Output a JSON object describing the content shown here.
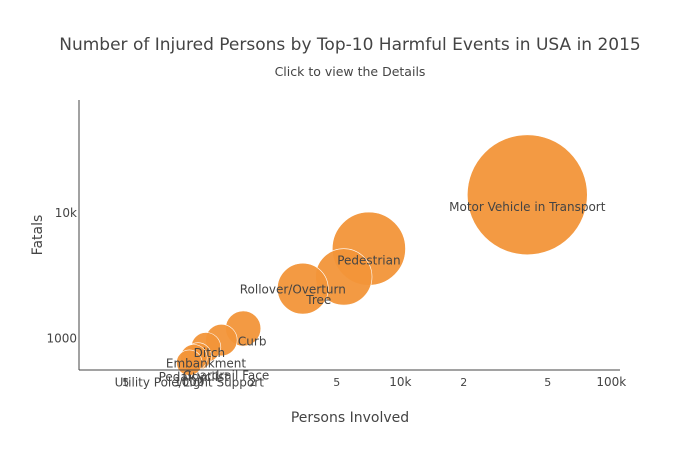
{
  "chart_data": {
    "type": "scatter",
    "title": "Number of Injured Persons by Top-10 Harmful Events in USA in 2015",
    "subtitle": "Click to view the Details",
    "xlabel": "Persons Involved",
    "ylabel": "Fatals",
    "x_scale": "log",
    "y_scale": "log",
    "xlim": [
      300,
      110000
    ],
    "ylim": [
      560,
      80000
    ],
    "grid": false,
    "legend": "none",
    "color": "#f29539",
    "x_ticks": [
      {
        "value": 500,
        "label": "5",
        "minor": true
      },
      {
        "value": 1000,
        "label": "1000",
        "minor": false
      },
      {
        "value": 2000,
        "label": "2",
        "minor": true
      },
      {
        "value": 5000,
        "label": "5",
        "minor": true
      },
      {
        "value": 10000,
        "label": "10k",
        "minor": false
      },
      {
        "value": 20000,
        "label": "2",
        "minor": true
      },
      {
        "value": 50000,
        "label": "5",
        "minor": true
      },
      {
        "value": 100000,
        "label": "100k",
        "minor": false
      }
    ],
    "y_ticks": [
      {
        "value": 1000,
        "label": "1000"
      },
      {
        "value": 10000,
        "label": "10k"
      }
    ],
    "points": [
      {
        "name": "Motor Vehicle in Transport",
        "x": 40000,
        "y": 14000,
        "size": 14000
      },
      {
        "name": "Pedestrian",
        "x": 7100,
        "y": 5200,
        "size": 5200
      },
      {
        "name": "Rollover/Overturn",
        "x": 3450,
        "y": 2500,
        "size": 2500
      },
      {
        "name": "Tree",
        "x": 5400,
        "y": 3100,
        "size": 3100
      },
      {
        "name": "Curb",
        "x": 1800,
        "y": 1200,
        "size": 1200
      },
      {
        "name": "Ditch",
        "x": 1420,
        "y": 970,
        "size": 970
      },
      {
        "name": "Embankment",
        "x": 1200,
        "y": 850,
        "size": 850
      },
      {
        "name": "Pedalcyclist",
        "x": 1050,
        "y": 700,
        "size": 700
      },
      {
        "name": "Guardrail Face",
        "x": 1100,
        "y": 720,
        "size": 720
      },
      {
        "name": "Utility Pole/Light Support",
        "x": 1000,
        "y": 640,
        "size": 640
      }
    ]
  }
}
